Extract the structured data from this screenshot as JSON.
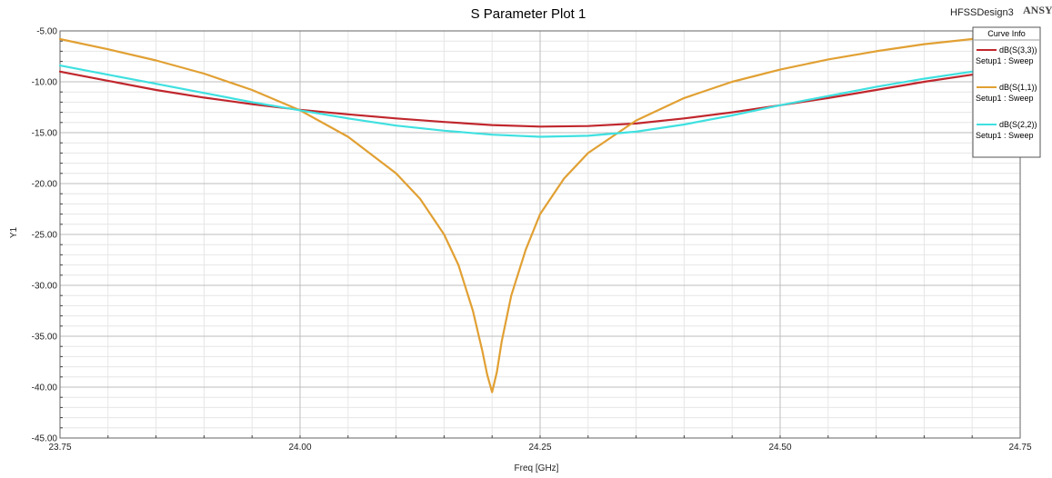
{
  "header": {
    "title": "S Parameter Plot 1",
    "design_name": "HFSSDesign3",
    "brand": "ANSYS"
  },
  "legend": {
    "title": "Curve Info",
    "placement": "top-right"
  },
  "colors": {
    "s33": "#c0272d",
    "s11": "#e1a033",
    "s22": "#3fe0e0",
    "grid_major": "#bdbdbd",
    "grid_minor": "#e6e6e6"
  },
  "chart_data": {
    "type": "line",
    "title": "S Parameter Plot 1",
    "xlabel": "Freq [GHz]",
    "ylabel": "Y1",
    "xlim": [
      23.75,
      24.75
    ],
    "ylim": [
      -45,
      -5
    ],
    "xticks": [
      23.75,
      24.0,
      24.25,
      24.5,
      24.75
    ],
    "xtick_labels": [
      "23.75",
      "24.00",
      "24.25",
      "24.50",
      "24.75"
    ],
    "yticks": [
      -5,
      -10,
      -15,
      -20,
      -25,
      -30,
      -35,
      -40,
      -45
    ],
    "ytick_labels": [
      "-5.00",
      "-10.00",
      "-15.00",
      "-20.00",
      "-25.00",
      "-30.00",
      "-35.00",
      "-40.00",
      "-45.00"
    ],
    "grid": true,
    "series": [
      {
        "name": "dB(S(3,3))",
        "sub": "Setup1 : Sweep",
        "color": "#c0272d",
        "x": [
          23.75,
          23.8,
          23.85,
          23.9,
          23.95,
          24.0,
          24.05,
          24.1,
          24.15,
          24.2,
          24.25,
          24.3,
          24.35,
          24.4,
          24.45,
          24.5,
          24.55,
          24.6,
          24.65,
          24.7
        ],
        "y": [
          -9.0,
          -9.9,
          -10.8,
          -11.55,
          -12.2,
          -12.75,
          -13.2,
          -13.6,
          -13.95,
          -14.25,
          -14.4,
          -14.35,
          -14.1,
          -13.6,
          -13.0,
          -12.3,
          -11.6,
          -10.8,
          -10.0,
          -9.3
        ]
      },
      {
        "name": "dB(S(1,1))",
        "sub": "Setup1 : Sweep",
        "color": "#e1a033",
        "x": [
          23.75,
          23.8,
          23.85,
          23.9,
          23.95,
          24.0,
          24.05,
          24.1,
          24.125,
          24.15,
          24.165,
          24.18,
          24.19,
          24.195,
          24.2,
          24.205,
          24.21,
          24.22,
          24.235,
          24.25,
          24.275,
          24.3,
          24.35,
          24.4,
          24.45,
          24.5,
          24.55,
          24.6,
          24.65,
          24.7
        ],
        "y": [
          -5.8,
          -6.8,
          -7.9,
          -9.2,
          -10.8,
          -12.8,
          -15.4,
          -19.0,
          -21.5,
          -25.0,
          -28.0,
          -32.5,
          -36.5,
          -38.8,
          -40.5,
          -38.5,
          -35.5,
          -31.0,
          -26.5,
          -23.0,
          -19.5,
          -17.0,
          -13.8,
          -11.6,
          -10.0,
          -8.8,
          -7.8,
          -7.0,
          -6.3,
          -5.8
        ]
      },
      {
        "name": "dB(S(2,2))",
        "sub": "Setup1 : Sweep",
        "color": "#3fe0e0",
        "x": [
          23.75,
          23.8,
          23.85,
          23.9,
          23.95,
          24.0,
          24.05,
          24.1,
          24.15,
          24.2,
          24.25,
          24.3,
          24.35,
          24.4,
          24.45,
          24.5,
          24.55,
          24.6,
          24.65,
          24.7
        ],
        "y": [
          -8.4,
          -9.3,
          -10.2,
          -11.1,
          -12.0,
          -12.8,
          -13.6,
          -14.3,
          -14.8,
          -15.2,
          -15.4,
          -15.3,
          -14.9,
          -14.2,
          -13.3,
          -12.3,
          -11.4,
          -10.5,
          -9.7,
          -9.0
        ]
      }
    ]
  }
}
